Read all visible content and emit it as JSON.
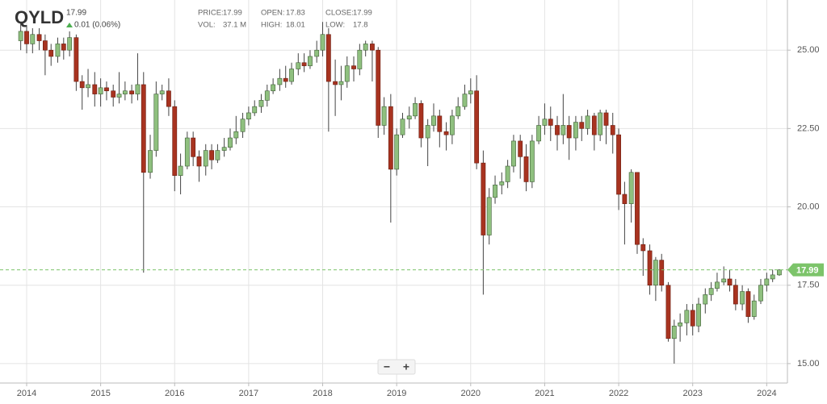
{
  "header": {
    "symbol": "QYLD",
    "price": "17.99",
    "change": "0.01 (0.06%)",
    "stats": [
      [
        "PRICE:",
        "17.99"
      ],
      [
        "OPEN:",
        "17.83"
      ],
      [
        "CLOSE:",
        "17.99"
      ],
      [
        "VOL:",
        "37.1 M"
      ],
      [
        "HIGH:",
        "18.01"
      ],
      [
        "LOW:",
        "17.8"
      ]
    ]
  },
  "controls": [
    "−",
    "+"
  ],
  "chart_data": {
    "type": "candlestick",
    "x": [
      2013.92,
      2014,
      2014.08,
      2014.17,
      2014.25,
      2014.33,
      2014.42,
      2014.5,
      2014.58,
      2014.67,
      2014.75,
      2014.83,
      2014.92,
      2015,
      2015.08,
      2015.17,
      2015.25,
      2015.33,
      2015.42,
      2015.5,
      2015.58,
      2015.67,
      2015.75,
      2015.83,
      2015.92,
      2016,
      2016.08,
      2016.17,
      2016.25,
      2016.33,
      2016.42,
      2016.5,
      2016.58,
      2016.67,
      2016.75,
      2016.83,
      2016.92,
      2017,
      2017.08,
      2017.17,
      2017.25,
      2017.33,
      2017.42,
      2017.5,
      2017.58,
      2017.67,
      2017.75,
      2017.83,
      2017.92,
      2018,
      2018.08,
      2018.17,
      2018.25,
      2018.33,
      2018.42,
      2018.5,
      2018.58,
      2018.67,
      2018.75,
      2018.83,
      2018.92,
      2019,
      2019.08,
      2019.17,
      2019.25,
      2019.33,
      2019.42,
      2019.5,
      2019.58,
      2019.67,
      2019.75,
      2019.83,
      2019.92,
      2020,
      2020.08,
      2020.17,
      2020.25,
      2020.33,
      2020.42,
      2020.5,
      2020.58,
      2020.67,
      2020.75,
      2020.83,
      2020.92,
      2021,
      2021.08,
      2021.17,
      2021.25,
      2021.33,
      2021.42,
      2021.5,
      2021.58,
      2021.67,
      2021.75,
      2021.83,
      2021.92,
      2022,
      2022.08,
      2022.17,
      2022.25,
      2022.33,
      2022.42,
      2022.5,
      2022.58,
      2022.67,
      2022.75,
      2022.83,
      2022.92,
      2023,
      2023.08,
      2023.17,
      2023.25,
      2023.33,
      2023.42,
      2023.5,
      2023.58,
      2023.67,
      2023.75,
      2023.83,
      2023.92,
      2024,
      2024.08,
      2024.17
    ],
    "open": [
      25.3,
      25.6,
      25.2,
      25.5,
      25.3,
      25.0,
      24.8,
      25.2,
      25.0,
      25.4,
      24.0,
      23.8,
      23.9,
      23.6,
      23.8,
      23.7,
      23.5,
      23.6,
      23.7,
      23.6,
      23.9,
      21.1,
      21.8,
      23.6,
      23.7,
      23.2,
      21.0,
      21.3,
      22.2,
      21.6,
      21.3,
      21.8,
      21.5,
      21.8,
      21.9,
      22.2,
      22.4,
      22.8,
      23.0,
      23.2,
      23.4,
      23.7,
      23.9,
      24.1,
      24.0,
      24.4,
      24.6,
      24.5,
      24.8,
      25.0,
      25.5,
      24.0,
      23.9,
      24.0,
      24.5,
      24.4,
      25.0,
      25.2,
      25.0,
      22.6,
      23.2,
      21.2,
      22.3,
      22.8,
      22.9,
      23.3,
      22.2,
      22.6,
      22.9,
      22.4,
      22.3,
      22.9,
      23.2,
      23.6,
      23.7,
      21.4,
      19.1,
      20.3,
      20.7,
      20.8,
      21.3,
      22.1,
      21.6,
      20.8,
      22.1,
      22.6,
      22.8,
      22.6,
      22.3,
      22.6,
      22.2,
      22.7,
      22.5,
      22.9,
      22.3,
      23.0,
      22.6,
      22.3,
      20.4,
      20.1,
      21.1,
      18.8,
      18.6,
      17.5,
      18.3,
      17.5,
      15.8,
      16.2,
      16.3,
      16.7,
      16.2,
      16.9,
      17.2,
      17.4,
      17.6,
      17.7,
      17.5,
      16.9,
      17.3,
      16.5,
      17.0,
      17.5,
      17.7,
      17.83
    ],
    "high": [
      25.9,
      25.8,
      25.7,
      25.7,
      25.5,
      25.2,
      25.4,
      25.4,
      25.6,
      25.5,
      24.2,
      24.4,
      24.3,
      24.1,
      24.0,
      23.9,
      24.3,
      24.0,
      23.9,
      24.9,
      24.3,
      22.3,
      24.0,
      23.9,
      24.1,
      23.4,
      21.7,
      22.4,
      22.4,
      21.8,
      22.0,
      22.0,
      22.0,
      22.2,
      22.5,
      22.9,
      23.0,
      23.2,
      23.4,
      23.6,
      23.9,
      24.1,
      24.4,
      24.5,
      24.6,
      24.9,
      24.9,
      25.0,
      25.3,
      25.9,
      25.7,
      24.7,
      24.5,
      24.8,
      24.8,
      25.2,
      25.3,
      25.3,
      25.1,
      23.5,
      23.6,
      22.5,
      23.0,
      23.2,
      23.5,
      23.4,
      22.8,
      23.3,
      23.1,
      22.7,
      23.1,
      23.5,
      23.9,
      24.1,
      24.2,
      21.8,
      20.6,
      21.0,
      21.1,
      21.5,
      22.3,
      22.3,
      22.0,
      22.3,
      22.9,
      23.3,
      23.2,
      22.9,
      23.6,
      22.9,
      22.9,
      22.9,
      23.1,
      23.0,
      23.1,
      23.1,
      23.0,
      22.5,
      20.8,
      21.2,
      21.1,
      19.0,
      18.8,
      18.4,
      18.5,
      17.6,
      16.4,
      16.6,
      16.9,
      16.9,
      17.1,
      17.4,
      17.6,
      17.9,
      18.1,
      18.0,
      17.7,
      17.5,
      17.4,
      17.2,
      17.7,
      17.9,
      18.0,
      18.01
    ],
    "low": [
      25.0,
      24.9,
      24.9,
      25.0,
      24.2,
      24.5,
      24.6,
      24.7,
      24.8,
      23.7,
      23.1,
      23.5,
      23.2,
      23.2,
      23.4,
      23.2,
      23.3,
      23.4,
      23.3,
      23.4,
      17.9,
      20.9,
      21.6,
      23.4,
      22.9,
      20.5,
      20.4,
      21.2,
      21.3,
      20.8,
      21.0,
      21.2,
      21.4,
      21.6,
      21.8,
      22.0,
      22.2,
      22.6,
      22.9,
      23.0,
      23.2,
      23.6,
      23.7,
      23.8,
      23.9,
      24.2,
      24.3,
      24.4,
      24.6,
      24.8,
      22.4,
      22.9,
      23.4,
      23.8,
      24.0,
      24.2,
      24.8,
      24.0,
      22.2,
      22.3,
      19.5,
      21.0,
      22.2,
      22.5,
      22.8,
      21.9,
      21.3,
      22.4,
      21.9,
      21.8,
      22.0,
      22.8,
      23.1,
      23.3,
      21.2,
      17.2,
      18.8,
      20.1,
      20.4,
      20.6,
      21.1,
      20.9,
      20.5,
      20.6,
      22.0,
      22.3,
      22.1,
      21.8,
      22.0,
      21.5,
      21.8,
      22.1,
      22.3,
      21.8,
      22.1,
      22.0,
      21.7,
      19.9,
      18.8,
      19.5,
      18.5,
      17.8,
      17.2,
      17.0,
      17.3,
      15.7,
      15.0,
      15.7,
      15.9,
      15.9,
      16.0,
      16.6,
      17.0,
      17.3,
      17.5,
      17.3,
      16.7,
      16.7,
      16.3,
      16.4,
      16.9,
      17.3,
      17.6,
      17.8
    ],
    "close": [
      25.6,
      25.2,
      25.5,
      25.3,
      25.0,
      24.8,
      25.2,
      25.0,
      25.4,
      24.0,
      23.8,
      23.9,
      23.6,
      23.8,
      23.7,
      23.5,
      23.6,
      23.7,
      23.6,
      23.9,
      21.1,
      21.8,
      23.6,
      23.7,
      23.2,
      21.0,
      21.3,
      22.2,
      21.6,
      21.3,
      21.8,
      21.5,
      21.8,
      21.9,
      22.2,
      22.4,
      22.8,
      23.0,
      23.2,
      23.4,
      23.7,
      23.9,
      24.1,
      24.0,
      24.4,
      24.6,
      24.5,
      24.8,
      25.0,
      25.5,
      24.0,
      23.9,
      24.0,
      24.5,
      24.4,
      25.0,
      25.2,
      25.0,
      22.6,
      23.2,
      21.2,
      22.3,
      22.8,
      22.9,
      23.3,
      22.2,
      22.6,
      22.9,
      22.4,
      22.3,
      22.9,
      23.2,
      23.6,
      23.7,
      21.4,
      19.1,
      20.3,
      20.7,
      20.8,
      21.3,
      22.1,
      21.6,
      20.8,
      22.1,
      22.6,
      22.8,
      22.6,
      22.3,
      22.6,
      22.2,
      22.7,
      22.5,
      22.9,
      22.3,
      23.0,
      22.6,
      22.3,
      20.4,
      20.1,
      21.1,
      18.8,
      18.6,
      17.5,
      18.3,
      17.5,
      15.8,
      16.2,
      16.3,
      16.7,
      16.2,
      16.9,
      17.2,
      17.4,
      17.6,
      17.7,
      17.5,
      16.9,
      17.3,
      16.5,
      17.0,
      17.5,
      17.7,
      17.83,
      17.99
    ],
    "up_color": "#8fc07f",
    "down_color": "#a83320",
    "xlim": [
      2013.64,
      2024.28
    ],
    "xticks": [
      2014,
      2015,
      2016,
      2017,
      2018,
      2019,
      2020,
      2021,
      2022,
      2023,
      2024
    ],
    "ylim": [
      14.38,
      26.6
    ],
    "yticks": [
      {
        "value": 15,
        "label": "15.00"
      },
      {
        "value": 17.5,
        "label": "17.50"
      },
      {
        "value": 20,
        "label": "20.00"
      },
      {
        "value": 22.5,
        "label": "22.50"
      },
      {
        "value": 25,
        "label": "25.00"
      }
    ],
    "grid": true,
    "last_price": {
      "value": 17.99,
      "label": "17.99"
    },
    "last_price_color": "#7cc46a"
  }
}
